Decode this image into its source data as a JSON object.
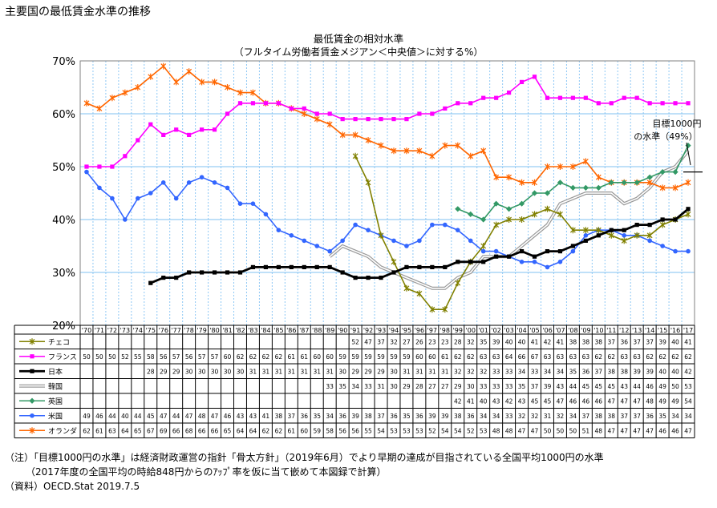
{
  "page_title": "主要国の最低賃金水準の推移",
  "notes": {
    "note1": "（注）「目標1000円の水準」は経済財政運営の指針「骨太方針」（2019年6月）でより早期の達成が目指されている全国平均1000円の水準",
    "note2": "（2017年度の全国平均の時給848円からのｱｯﾌﾟ率を仮に当て嵌めて本図録で計算）",
    "source": "（資料）OECD.Stat 2019.7.5"
  },
  "annotation": {
    "line1": "目標1000円",
    "line2": "の水準（49%）",
    "value": 49
  },
  "chart_data": {
    "type": "line",
    "title": "最低賃金の相対水準",
    "subtitle": "（フルタイム労働者賃金メジアン＜中央値＞に対する%）",
    "categories": [
      "'70",
      "'71",
      "'72",
      "'73",
      "'74",
      "'75",
      "'76",
      "'77",
      "'78",
      "'79",
      "'80",
      "'81",
      "'82",
      "'83",
      "'84",
      "'85",
      "'86",
      "'87",
      "'88",
      "'89",
      "'90",
      "'91",
      "'92",
      "'93",
      "'94",
      "'95",
      "'96",
      "'97",
      "'98",
      "'99",
      "'00",
      "'01",
      "'02",
      "'03",
      "'04",
      "'05",
      "'06",
      "'07",
      "'08",
      "'09",
      "'10",
      "'11",
      "'12",
      "'13",
      "'14",
      "'15",
      "'16",
      "'17"
    ],
    "ylim": [
      20,
      70
    ],
    "yticks": [
      "20%",
      "30%",
      "40%",
      "50%",
      "60%",
      "70%"
    ],
    "grid": true,
    "series": [
      {
        "name": "チェコ",
        "color": "#808000",
        "marker": "star",
        "values": [
          null,
          null,
          null,
          null,
          null,
          null,
          null,
          null,
          null,
          null,
          null,
          null,
          null,
          null,
          null,
          null,
          null,
          null,
          null,
          null,
          null,
          52,
          47,
          37,
          32,
          27,
          26,
          23,
          23,
          28,
          32,
          35,
          39,
          40,
          40,
          41,
          42,
          41,
          38,
          38,
          38,
          37,
          36,
          37,
          37,
          39,
          40,
          41
        ]
      },
      {
        "name": "フランス",
        "color": "#FF00FF",
        "marker": "square",
        "values": [
          50,
          50,
          50,
          52,
          55,
          58,
          56,
          57,
          56,
          57,
          57,
          60,
          62,
          62,
          62,
          62,
          61,
          61,
          60,
          60,
          59,
          59,
          59,
          59,
          59,
          59,
          60,
          60,
          61,
          62,
          62,
          63,
          63,
          64,
          66,
          67,
          63,
          63,
          63,
          63,
          62,
          62,
          63,
          63,
          62,
          62,
          62,
          62
        ]
      },
      {
        "name": "日本",
        "color": "#000000",
        "marker": "square",
        "values": [
          null,
          null,
          null,
          null,
          null,
          28,
          29,
          29,
          30,
          30,
          30,
          30,
          30,
          31,
          31,
          31,
          31,
          31,
          31,
          31,
          30,
          29,
          29,
          29,
          30,
          31,
          31,
          31,
          31,
          32,
          32,
          32,
          33,
          33,
          34,
          33,
          34,
          34,
          35,
          36,
          37,
          38,
          38,
          39,
          39,
          40,
          40,
          42
        ]
      },
      {
        "name": "韓国",
        "color": "#A6A6A6",
        "marker": "none",
        "values": [
          null,
          null,
          null,
          null,
          null,
          null,
          null,
          null,
          null,
          null,
          null,
          null,
          null,
          null,
          null,
          null,
          null,
          null,
          null,
          33,
          35,
          34,
          33,
          31,
          30,
          29,
          28,
          27,
          27,
          29,
          30,
          33,
          33,
          33,
          35,
          37,
          39,
          43,
          44,
          45,
          45,
          45,
          43,
          44,
          46,
          49,
          50,
          53
        ]
      },
      {
        "name": "英国",
        "color": "#339966",
        "marker": "diamond",
        "values": [
          null,
          null,
          null,
          null,
          null,
          null,
          null,
          null,
          null,
          null,
          null,
          null,
          null,
          null,
          null,
          null,
          null,
          null,
          null,
          null,
          null,
          null,
          null,
          null,
          null,
          null,
          null,
          null,
          null,
          42,
          41,
          40,
          43,
          42,
          43,
          45,
          45,
          47,
          46,
          46,
          46,
          47,
          47,
          47,
          48,
          49,
          49,
          54
        ]
      },
      {
        "name": "米国",
        "color": "#3366FF",
        "marker": "circle",
        "values": [
          49,
          46,
          44,
          40,
          44,
          45,
          47,
          44,
          47,
          48,
          47,
          46,
          43,
          43,
          41,
          38,
          37,
          36,
          35,
          34,
          36,
          39,
          38,
          37,
          36,
          35,
          36,
          39,
          39,
          38,
          36,
          34,
          34,
          33,
          32,
          32,
          31,
          32,
          34,
          37,
          38,
          38,
          37,
          37,
          36,
          35,
          34,
          34
        ]
      },
      {
        "name": "オランダ",
        "color": "#FF6600",
        "marker": "star",
        "values": [
          62,
          61,
          63,
          64,
          65,
          67,
          69,
          66,
          68,
          66,
          66,
          65,
          64,
          64,
          62,
          62,
          61,
          60,
          59,
          58,
          56,
          56,
          55,
          54,
          53,
          53,
          53,
          52,
          54,
          54,
          52,
          53,
          48,
          48,
          47,
          47,
          50,
          50,
          50,
          51,
          48,
          47,
          47,
          47,
          47,
          46,
          46,
          47
        ]
      }
    ]
  }
}
